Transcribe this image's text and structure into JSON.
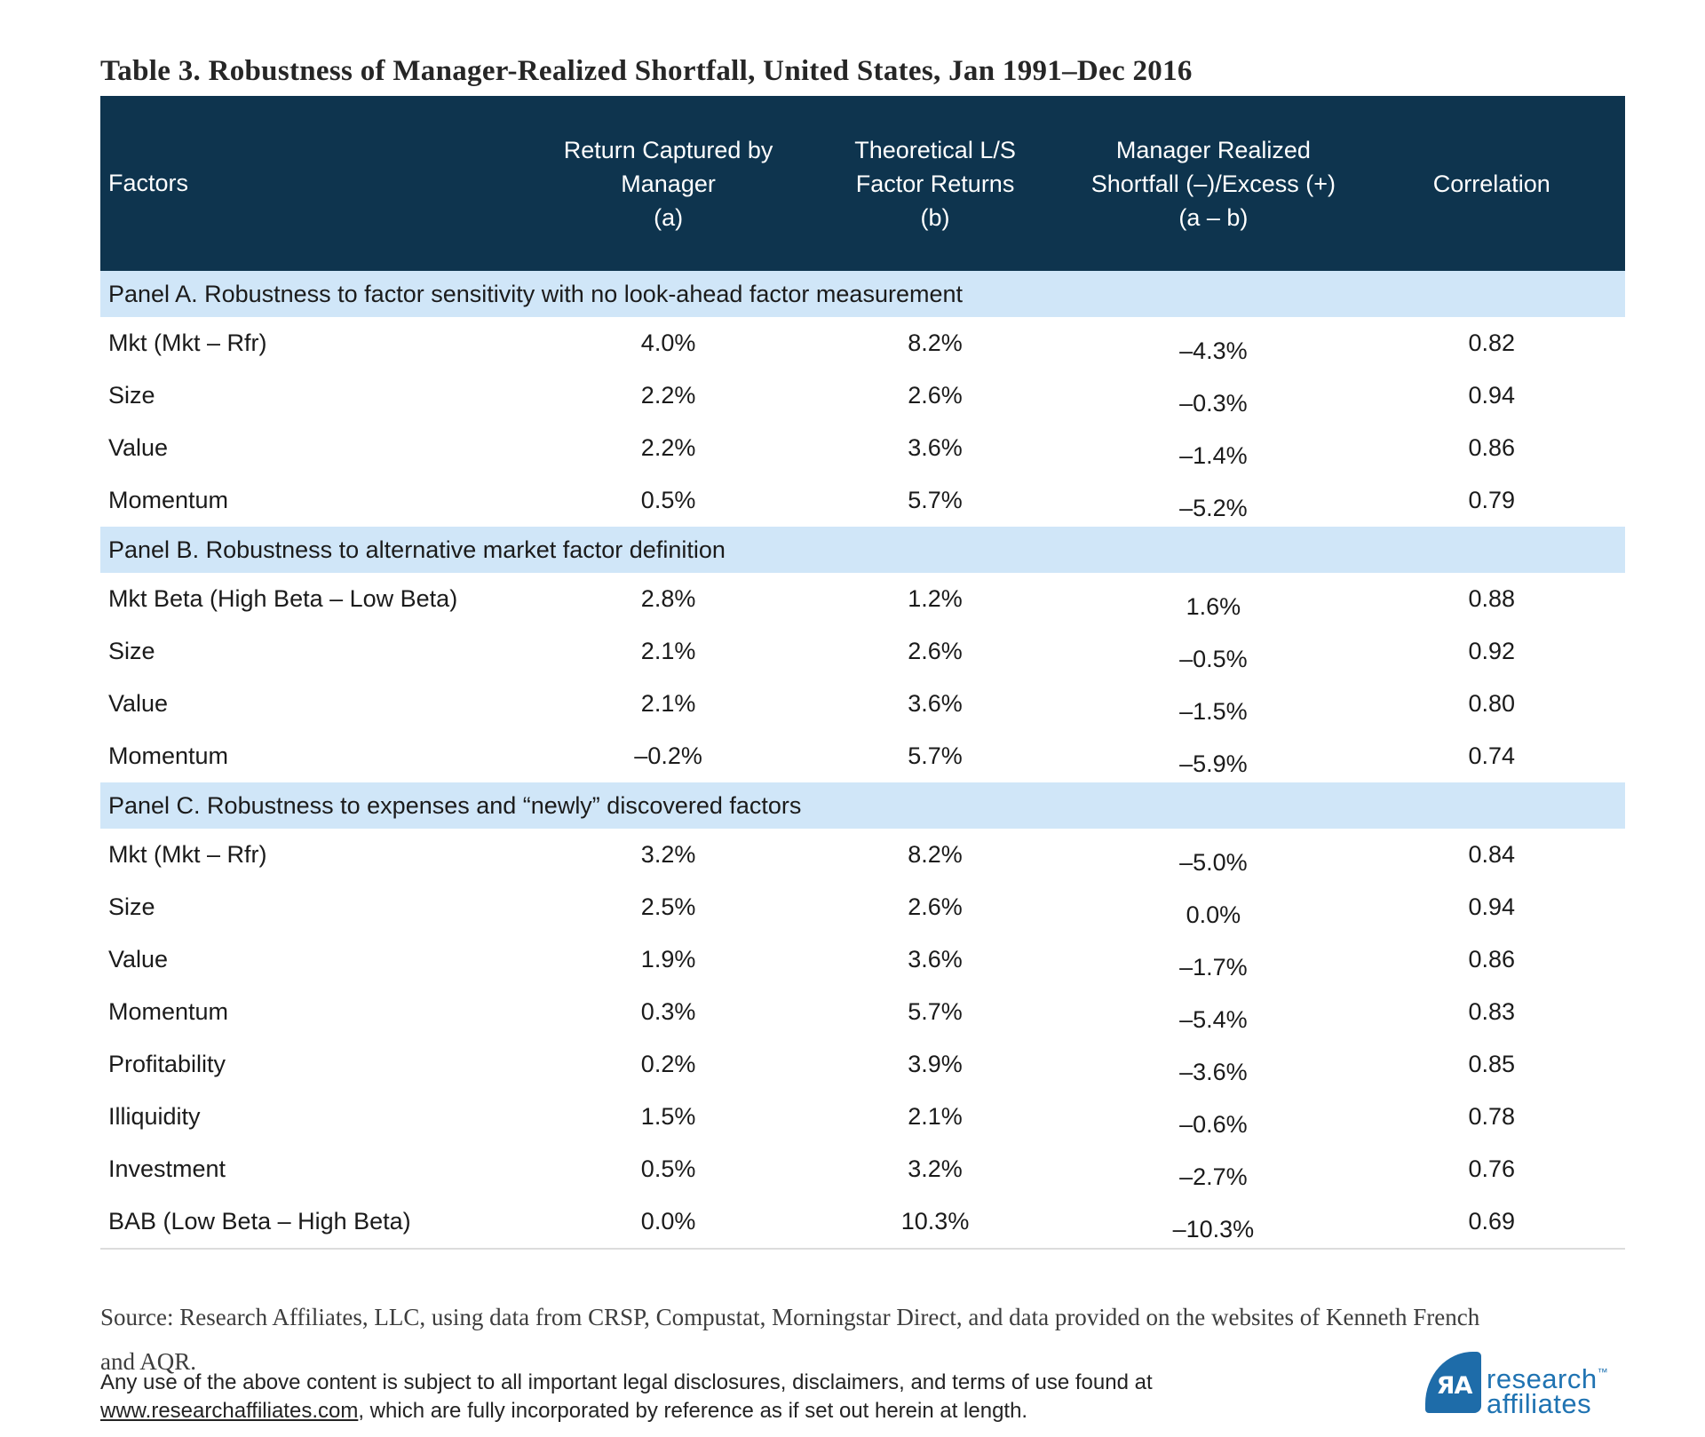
{
  "page": {
    "title": "Table 3. Robustness of Manager-Realized Shortfall, United States, Jan 1991–Dec 2016"
  },
  "colors": {
    "header_bg": "#0e344e",
    "panel_band_bg": "#d0e6f8",
    "logo_blue": "#1e6ca9",
    "logo_text_blue": "#1f73b2"
  },
  "table": {
    "columns": [
      {
        "label": "Factors"
      },
      {
        "lines": [
          "Return Captured by",
          "Manager",
          "(a)"
        ]
      },
      {
        "lines": [
          "Theoretical L/S",
          "Factor Returns",
          "(b)"
        ]
      },
      {
        "lines": [
          "Manager Realized",
          "Shortfall (–)/Excess (+)",
          "(a – b)"
        ]
      },
      {
        "lines": [
          "Correlation"
        ]
      }
    ],
    "panels": [
      {
        "label": "Panel A. Robustness to factor sensitivity with no look-ahead factor measurement",
        "rows": [
          {
            "factor": "Mkt (Mkt – Rfr)",
            "a": "4.0%",
            "b": "8.2%",
            "ab": "–4.3%",
            "corr": "0.82"
          },
          {
            "factor": "Size",
            "a": "2.2%",
            "b": "2.6%",
            "ab": "–0.3%",
            "corr": "0.94"
          },
          {
            "factor": "Value",
            "a": "2.2%",
            "b": "3.6%",
            "ab": "–1.4%",
            "corr": "0.86"
          },
          {
            "factor": "Momentum",
            "a": "0.5%",
            "b": "5.7%",
            "ab": "–5.2%",
            "corr": "0.79"
          }
        ]
      },
      {
        "label": "Panel B. Robustness to alternative market factor definition",
        "rows": [
          {
            "factor": "Mkt Beta (High Beta – Low Beta)",
            "a": "2.8%",
            "b": "1.2%",
            "ab": "1.6%",
            "corr": "0.88"
          },
          {
            "factor": "Size",
            "a": "2.1%",
            "b": "2.6%",
            "ab": "–0.5%",
            "corr": "0.92"
          },
          {
            "factor": "Value",
            "a": "2.1%",
            "b": "3.6%",
            "ab": "–1.5%",
            "corr": "0.80"
          },
          {
            "factor": "Momentum",
            "a": "–0.2%",
            "b": "5.7%",
            "ab": "–5.9%",
            "corr": "0.74"
          }
        ]
      },
      {
        "label": "Panel C. Robustness to expenses and “newly” discovered factors",
        "rows": [
          {
            "factor": "Mkt (Mkt – Rfr)",
            "a": "3.2%",
            "b": "8.2%",
            "ab": "–5.0%",
            "corr": "0.84"
          },
          {
            "factor": "Size",
            "a": "2.5%",
            "b": "2.6%",
            "ab": "0.0%",
            "corr": "0.94"
          },
          {
            "factor": "Value",
            "a": "1.9%",
            "b": "3.6%",
            "ab": "–1.7%",
            "corr": "0.86"
          },
          {
            "factor": "Momentum",
            "a": "0.3%",
            "b": "5.7%",
            "ab": "–5.4%",
            "corr": "0.83"
          },
          {
            "factor": "Profitability",
            "a": "0.2%",
            "b": "3.9%",
            "ab": "–3.6%",
            "corr": "0.85"
          },
          {
            "factor": "Illiquidity",
            "a": "1.5%",
            "b": "2.1%",
            "ab": "–0.6%",
            "corr": "0.78"
          },
          {
            "factor": "Investment",
            "a": "0.5%",
            "b": "3.2%",
            "ab": "–2.7%",
            "corr": "0.76"
          },
          {
            "factor": "BAB (Low Beta – High Beta)",
            "a": "0.0%",
            "b": "10.3%",
            "ab": "–10.3%",
            "corr": "0.69"
          }
        ]
      }
    ]
  },
  "footer": {
    "source_line1": "Source: Research Affiliates, LLC, using data from CRSP, Compustat, Morningstar Direct, and  data provided on the websites of Kenneth French",
    "source_line2": "and AQR.",
    "legal_line1": "Any use of the above content is subject to all important legal disclosures, disclaimers, and terms of use found at",
    "legal_link": "www.researchaffiliates.com",
    "legal_line2": ", which are fully incorporated by reference as if set out herein at length.",
    "logo": {
      "monogram": "ЯA",
      "line1": "research",
      "tm": "™",
      "line2": "affiliates"
    }
  }
}
